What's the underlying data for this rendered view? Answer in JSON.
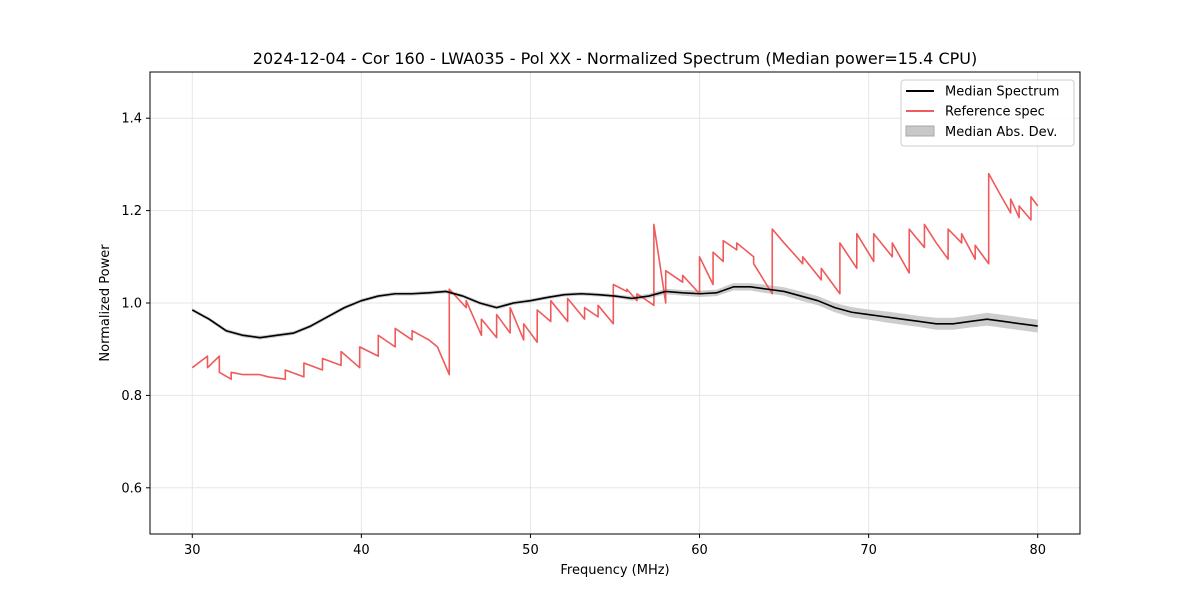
{
  "chart_data": {
    "type": "line",
    "title": "2024-12-04 - Cor 160 - LWA035 - Pol XX - Normalized Spectrum (Median power=15.4 CPU)",
    "xlabel": "Frequency (MHz)",
    "ylabel": "Normalized Power",
    "xlim": [
      27.5,
      82.5
    ],
    "ylim": [
      0.5,
      1.5
    ],
    "xticks": [
      30,
      40,
      50,
      60,
      70,
      80
    ],
    "yticks": [
      0.6,
      0.8,
      1.0,
      1.2,
      1.4
    ],
    "xtick_labels": [
      "30",
      "40",
      "50",
      "60",
      "70",
      "80"
    ],
    "ytick_labels": [
      "0.6",
      "0.8",
      "1.0",
      "1.2",
      "1.4"
    ],
    "grid": true,
    "legend_position": "top-right",
    "legend": [
      "Median Spectrum",
      "Reference spec",
      "Median Abs. Dev."
    ],
    "series": [
      {
        "name": "Median Spectrum",
        "color": "#000000",
        "x": [
          30,
          31,
          32,
          33,
          34,
          35,
          36,
          37,
          38,
          39,
          40,
          41,
          42,
          43,
          44,
          45,
          46,
          47,
          48,
          49,
          50,
          51,
          52,
          53,
          54,
          55,
          56,
          57,
          58,
          59,
          60,
          61,
          62,
          63,
          64,
          65,
          66,
          67,
          68,
          69,
          70,
          71,
          72,
          73,
          74,
          75,
          76,
          77,
          78,
          79,
          80
        ],
        "y": [
          0.985,
          0.965,
          0.94,
          0.93,
          0.925,
          0.93,
          0.935,
          0.95,
          0.97,
          0.99,
          1.005,
          1.015,
          1.02,
          1.02,
          1.022,
          1.025,
          1.015,
          1.0,
          0.99,
          1.0,
          1.005,
          1.012,
          1.018,
          1.02,
          1.018,
          1.015,
          1.01,
          1.015,
          1.025,
          1.022,
          1.02,
          1.022,
          1.035,
          1.035,
          1.03,
          1.025,
          1.015,
          1.005,
          0.99,
          0.98,
          0.975,
          0.97,
          0.965,
          0.96,
          0.955,
          0.955,
          0.96,
          0.965,
          0.96,
          0.955,
          0.95
        ]
      },
      {
        "name": "Reference spec",
        "color": "#f05a5a",
        "x": [
          30,
          30.9,
          30.9,
          31.6,
          31.6,
          32.3,
          32.3,
          33,
          34,
          34.5,
          35.5,
          35.5,
          36.6,
          36.6,
          37.7,
          37.7,
          38.8,
          38.8,
          39.9,
          39.9,
          41,
          41,
          42,
          42,
          43,
          43,
          44,
          44.5,
          45.2,
          45.2,
          46.2,
          46.2,
          47.1,
          47.1,
          48,
          48,
          48.8,
          48.8,
          49.6,
          49.6,
          50.4,
          50.4,
          51.2,
          51.2,
          52.2,
          52.2,
          53.2,
          53.2,
          54,
          54,
          54.9,
          54.9,
          55.7,
          55.7,
          56.3,
          56.3,
          57.3,
          57.3,
          58,
          58,
          59,
          59,
          60,
          60,
          60.8,
          60.8,
          61.4,
          61.4,
          62.2,
          62.2,
          63.2,
          63.2,
          64.3,
          64.3,
          65,
          66.1,
          66.1,
          67.2,
          67.2,
          68.3,
          68.3,
          69.3,
          69.3,
          70.3,
          70.3,
          71.4,
          71.4,
          72.4,
          72.4,
          73.3,
          73.3,
          74,
          74.7,
          74.7,
          75.5,
          75.5,
          76.3,
          76.3,
          77.1,
          77.1,
          77.7,
          78.4,
          78.4,
          78.9,
          78.9,
          79.6,
          79.6,
          80
        ],
        "y": [
          0.86,
          0.885,
          0.86,
          0.885,
          0.85,
          0.835,
          0.85,
          0.845,
          0.845,
          0.84,
          0.835,
          0.855,
          0.84,
          0.87,
          0.855,
          0.88,
          0.865,
          0.895,
          0.86,
          0.905,
          0.885,
          0.93,
          0.905,
          0.945,
          0.92,
          0.94,
          0.92,
          0.905,
          0.845,
          1.03,
          0.99,
          1.005,
          0.93,
          0.965,
          0.925,
          0.975,
          0.935,
          0.99,
          0.92,
          0.955,
          0.915,
          0.985,
          0.96,
          1.005,
          0.96,
          1.01,
          0.965,
          0.99,
          0.97,
          0.995,
          0.955,
          1.04,
          1.025,
          1.03,
          1.005,
          1.02,
          0.995,
          1.17,
          1.0,
          1.07,
          1.045,
          1.06,
          1.02,
          1.1,
          1.04,
          1.11,
          1.09,
          1.135,
          1.115,
          1.13,
          1.1,
          1.085,
          1.02,
          1.16,
          1.13,
          1.085,
          1.1,
          1.05,
          1.075,
          1.02,
          1.13,
          1.075,
          1.15,
          1.09,
          1.15,
          1.1,
          1.13,
          1.065,
          1.16,
          1.12,
          1.17,
          1.13,
          1.095,
          1.16,
          1.13,
          1.15,
          1.095,
          1.125,
          1.085,
          1.28,
          1.24,
          1.195,
          1.225,
          1.185,
          1.21,
          1.18,
          1.23,
          1.21
        ]
      }
    ],
    "band": {
      "name": "Median Abs. Dev.",
      "color": "#c8c8c8",
      "stroke": "#a8a8a8",
      "halfwidth": [
        0.004,
        0.004,
        0.004,
        0.004,
        0.004,
        0.004,
        0.004,
        0.004,
        0.004,
        0.004,
        0.004,
        0.004,
        0.004,
        0.004,
        0.004,
        0.004,
        0.004,
        0.004,
        0.004,
        0.004,
        0.004,
        0.004,
        0.004,
        0.004,
        0.004,
        0.004,
        0.005,
        0.005,
        0.006,
        0.006,
        0.007,
        0.007,
        0.008,
        0.008,
        0.009,
        0.009,
        0.01,
        0.01,
        0.01,
        0.011,
        0.011,
        0.012,
        0.012,
        0.012,
        0.013,
        0.013,
        0.013,
        0.014,
        0.014,
        0.014,
        0.014
      ]
    }
  }
}
